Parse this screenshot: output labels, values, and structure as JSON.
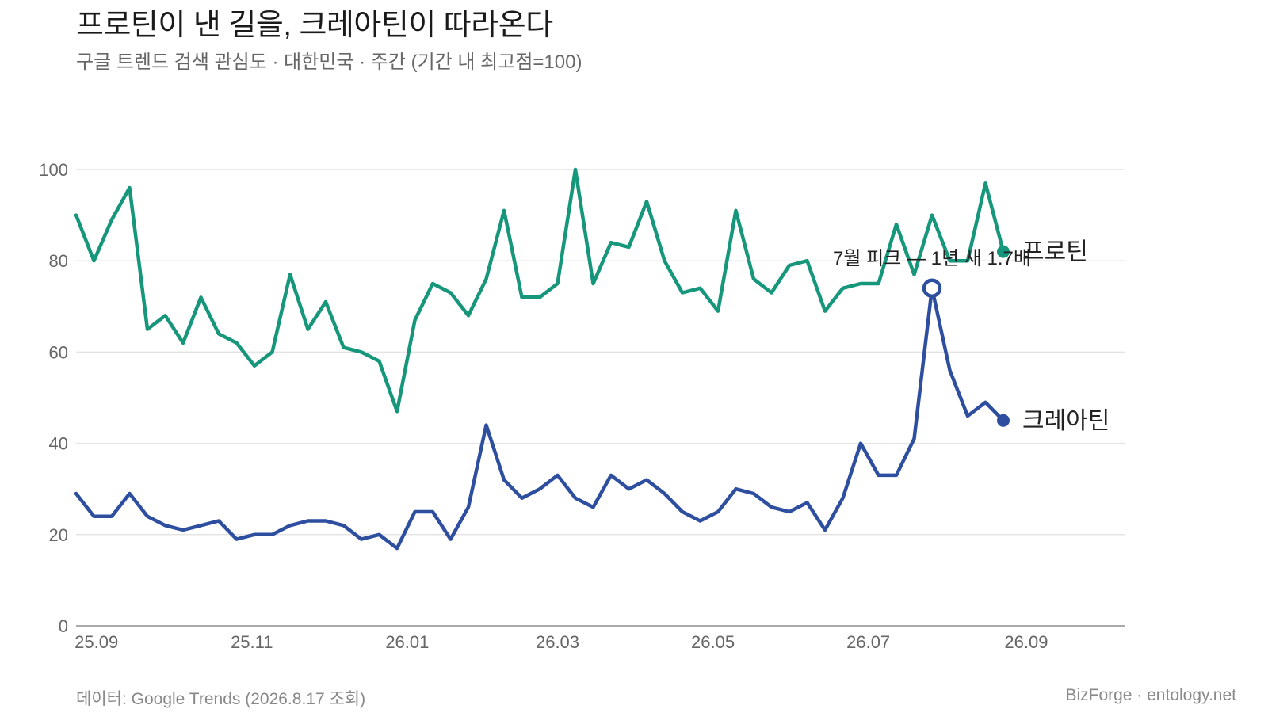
{
  "title": "프로틴이 낸 길을, 크레아틴이 따라온다",
  "subtitle": "구글 트렌드 검색 관심도 · 대한민국 · 주간 (기간 내 최고점=100)",
  "footer": {
    "source": "데이터: Google Trends (2026.8.17 조회)",
    "credit": "BizForge · entology.net"
  },
  "chart_data": {
    "type": "line",
    "x_ticks": [
      "25.09",
      "25.11",
      "26.01",
      "26.03",
      "26.05",
      "26.07",
      "26.09"
    ],
    "y_ticks": [
      0,
      20,
      40,
      60,
      80,
      100
    ],
    "ylim": [
      0,
      100
    ],
    "grid": true,
    "legend": "inline line-end labels",
    "x_start": "2025-08-24",
    "x_step_days": 7,
    "series": [
      {
        "name": "프로틴",
        "color": "#16967a",
        "values": [
          90,
          80,
          89,
          96,
          65,
          68,
          62,
          72,
          64,
          62,
          57,
          60,
          77,
          65,
          71,
          61,
          60,
          58,
          47,
          67,
          75,
          73,
          68,
          76,
          91,
          72,
          72,
          75,
          100,
          75,
          84,
          83,
          93,
          80,
          73,
          74,
          69,
          91,
          76,
          73,
          79,
          80,
          69,
          74,
          75,
          75,
          88,
          77,
          90,
          80,
          80,
          97,
          82
        ]
      },
      {
        "name": "크레아틴",
        "color": "#2e4fa0",
        "values": [
          29,
          24,
          24,
          29,
          24,
          22,
          21,
          22,
          23,
          19,
          20,
          20,
          22,
          23,
          23,
          22,
          19,
          20,
          17,
          25,
          25,
          19,
          26,
          44,
          32,
          28,
          30,
          33,
          28,
          26,
          33,
          30,
          32,
          29,
          25,
          23,
          25,
          30,
          29,
          26,
          25,
          27,
          21,
          28,
          40,
          33,
          33,
          41,
          74,
          56,
          46,
          49,
          45
        ]
      }
    ],
    "annotation": {
      "text": "7월 피크 — 1년 새 1.7배",
      "series": "크레아틴",
      "index": 48
    }
  }
}
